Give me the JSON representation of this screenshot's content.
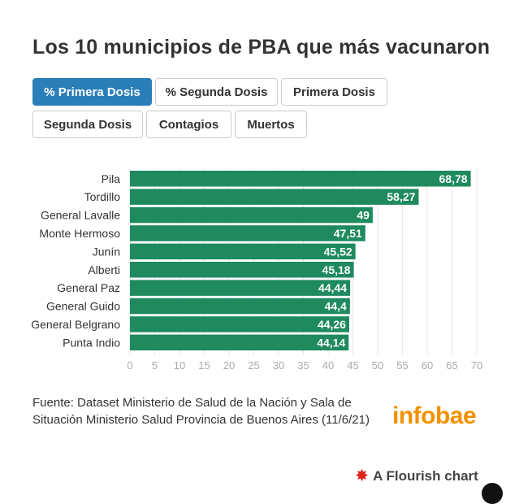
{
  "title": "Los 10 municipios de PBA que más vacunaron",
  "buttons": [
    {
      "label": "% Primera Dosis",
      "active": true
    },
    {
      "label": "% Segunda Dosis",
      "active": false
    },
    {
      "label": "Primera Dosis",
      "active": false
    },
    {
      "label": "Segunda Dosis",
      "active": false
    },
    {
      "label": "Contagios",
      "active": false
    },
    {
      "label": "Muertos",
      "active": false
    }
  ],
  "chart_data": {
    "type": "bar",
    "orientation": "horizontal",
    "categories": [
      "Pila",
      "Tordillo",
      "General Lavalle",
      "Monte Hermoso",
      "Junín",
      "Alberti",
      "General Paz",
      "General Guido",
      "General Belgrano",
      "Punta Indio"
    ],
    "values": [
      68.78,
      58.27,
      49,
      47.51,
      45.52,
      45.18,
      44.44,
      44.4,
      44.26,
      44.14
    ],
    "value_labels": [
      "68,78",
      "58,27",
      "49",
      "47,51",
      "45,52",
      "45,18",
      "44,44",
      "44,4",
      "44,26",
      "44,14"
    ],
    "xlim": [
      0,
      70
    ],
    "xticks": [
      0,
      5,
      10,
      15,
      20,
      25,
      30,
      35,
      40,
      45,
      50,
      55,
      60,
      65,
      70
    ],
    "grid": true,
    "bar_color": "#1e8a5e"
  },
  "source": "Fuente: Dataset Ministerio de Salud de la Nación y Sala de Situación Ministerio Salud Provincia de Buenos Aires (11/6/21)",
  "logo": "infobae",
  "footer": "A Flourish chart",
  "colors": {
    "active_button": "#2a7fb8",
    "logo": "#f29100",
    "flourish_icon": "#e0251b"
  }
}
